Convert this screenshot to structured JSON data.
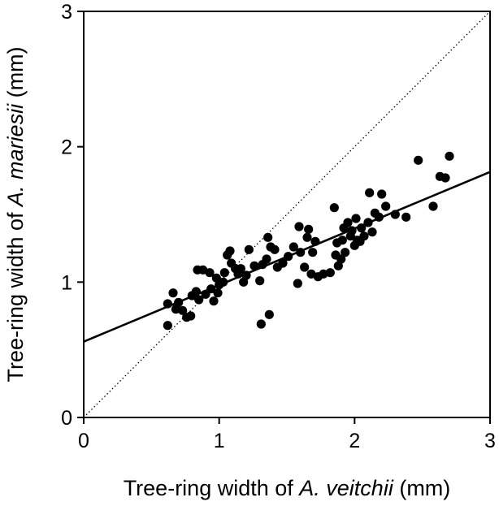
{
  "chart_data": {
    "type": "scatter",
    "xlabel_parts": [
      {
        "text": "Tree-ring width of ",
        "italic": false
      },
      {
        "text": "A. veitchii",
        "italic": true
      },
      {
        "text": " (mm)",
        "italic": false
      }
    ],
    "ylabel_parts": [
      {
        "text": "Tree-ring width of ",
        "italic": false
      },
      {
        "text": "A. mariesii",
        "italic": true
      },
      {
        "text": " (mm)",
        "italic": false
      }
    ],
    "xlim": [
      0,
      3
    ],
    "ylim": [
      0,
      3
    ],
    "xticks": [
      "0",
      "1",
      "2",
      "3"
    ],
    "yticks": [
      "0",
      "1",
      "2",
      "3"
    ],
    "grid": false,
    "marker_color": "#000000",
    "regression_line": {
      "intercept": 0.56,
      "slope": 0.418
    },
    "reference_line": {
      "type": "1:1",
      "style": "dotted"
    },
    "points": [
      [
        0.62,
        0.68
      ],
      [
        0.62,
        0.84
      ],
      [
        0.66,
        0.92
      ],
      [
        0.68,
        0.8
      ],
      [
        0.7,
        0.85
      ],
      [
        0.73,
        0.79
      ],
      [
        0.76,
        0.74
      ],
      [
        0.79,
        0.75
      ],
      [
        0.8,
        0.9
      ],
      [
        0.83,
        0.93
      ],
      [
        0.84,
        1.09
      ],
      [
        0.85,
        0.87
      ],
      [
        0.88,
        1.09
      ],
      [
        0.9,
        0.91
      ],
      [
        0.93,
        1.07
      ],
      [
        0.94,
        0.95
      ],
      [
        0.96,
        0.86
      ],
      [
        0.98,
        1.03
      ],
      [
        0.99,
        0.92
      ],
      [
        1.0,
        0.98
      ],
      [
        1.03,
        1.0
      ],
      [
        1.04,
        1.07
      ],
      [
        1.06,
        1.2
      ],
      [
        1.08,
        1.23
      ],
      [
        1.09,
        1.14
      ],
      [
        1.12,
        1.1
      ],
      [
        1.14,
        1.06
      ],
      [
        1.16,
        1.1
      ],
      [
        1.18,
        1.0
      ],
      [
        1.2,
        1.05
      ],
      [
        1.22,
        1.24
      ],
      [
        1.26,
        1.12
      ],
      [
        1.3,
        1.01
      ],
      [
        1.31,
        0.69
      ],
      [
        1.32,
        1.13
      ],
      [
        1.35,
        1.17
      ],
      [
        1.36,
        1.33
      ],
      [
        1.37,
        0.76
      ],
      [
        1.38,
        1.26
      ],
      [
        1.41,
        1.24
      ],
      [
        1.43,
        1.11
      ],
      [
        1.47,
        1.14
      ],
      [
        1.51,
        1.19
      ],
      [
        1.55,
        1.26
      ],
      [
        1.58,
        0.99
      ],
      [
        1.59,
        1.41
      ],
      [
        1.6,
        1.22
      ],
      [
        1.63,
        1.11
      ],
      [
        1.65,
        1.33
      ],
      [
        1.66,
        1.39
      ],
      [
        1.68,
        1.06
      ],
      [
        1.69,
        1.22
      ],
      [
        1.71,
        1.3
      ],
      [
        1.73,
        1.04
      ],
      [
        1.77,
        1.06
      ],
      [
        1.82,
        1.07
      ],
      [
        1.85,
        1.55
      ],
      [
        1.86,
        1.2
      ],
      [
        1.87,
        1.29
      ],
      [
        1.88,
        1.12
      ],
      [
        1.9,
        1.17
      ],
      [
        1.91,
        1.31
      ],
      [
        1.92,
        1.4
      ],
      [
        1.93,
        1.22
      ],
      [
        1.95,
        1.44
      ],
      [
        1.97,
        1.34
      ],
      [
        1.98,
        1.38
      ],
      [
        2.0,
        1.27
      ],
      [
        2.01,
        1.47
      ],
      [
        2.02,
        1.31
      ],
      [
        2.04,
        1.3
      ],
      [
        2.05,
        1.4
      ],
      [
        2.07,
        1.34
      ],
      [
        2.1,
        1.44
      ],
      [
        2.11,
        1.66
      ],
      [
        2.13,
        1.37
      ],
      [
        2.15,
        1.51
      ],
      [
        2.18,
        1.48
      ],
      [
        2.2,
        1.65
      ],
      [
        2.23,
        1.56
      ],
      [
        2.3,
        1.5
      ],
      [
        2.38,
        1.48
      ],
      [
        2.47,
        1.9
      ],
      [
        2.58,
        1.56
      ],
      [
        2.63,
        1.78
      ],
      [
        2.67,
        1.77
      ],
      [
        2.7,
        1.93
      ]
    ]
  }
}
